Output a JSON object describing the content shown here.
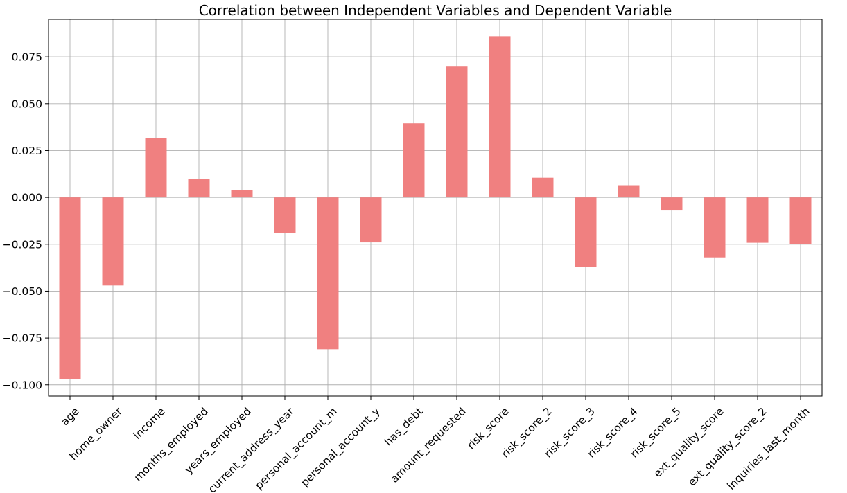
{
  "chart_data": {
    "type": "bar",
    "title": "Correlation between Independent Variables and Dependent Variable",
    "xlabel": "",
    "ylabel": "",
    "categories": [
      "age",
      "home_owner",
      "income",
      "months_employed",
      "years_employed",
      "current_address_year",
      "personal_account_m",
      "personal_account_y",
      "has_debt",
      "amount_requested",
      "risk_score",
      "risk_score_2",
      "risk_score_3",
      "risk_score_4",
      "risk_score_5",
      "ext_quality_score",
      "ext_quality_score_2",
      "inquiries_last_month"
    ],
    "values": [
      -0.097,
      -0.047,
      0.0315,
      0.01,
      0.0038,
      -0.019,
      -0.081,
      -0.024,
      0.0395,
      0.0698,
      0.086,
      0.0105,
      -0.0372,
      0.0065,
      -0.007,
      -0.032,
      -0.0242,
      -0.0248
    ],
    "ylim": [
      -0.106,
      0.095
    ],
    "yticks": [
      -0.1,
      -0.075,
      -0.05,
      -0.025,
      0.0,
      0.025,
      0.05,
      0.075
    ],
    "ytick_labels": [
      "−0.100",
      "−0.075",
      "−0.050",
      "−0.025",
      "0.000",
      "0.025",
      "0.050",
      "0.075"
    ],
    "bar_color": "#f08080",
    "grid": true,
    "legend": "none"
  }
}
